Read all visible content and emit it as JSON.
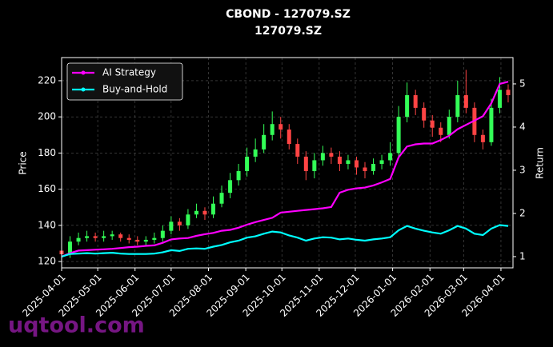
{
  "chart_data": {
    "type": "candlestick",
    "title": "CBOND - 127079.SZ",
    "subtitle": "127079.SZ",
    "ylabel": "Price",
    "y2label": "Return",
    "watermark": "uqtool.com",
    "x": [
      "2025-04-01",
      "2025-04-08",
      "2025-04-15",
      "2025-04-22",
      "2025-04-29",
      "2025-05-06",
      "2025-05-13",
      "2025-05-20",
      "2025-05-27",
      "2025-06-03",
      "2025-06-10",
      "2025-06-17",
      "2025-06-24",
      "2025-07-01",
      "2025-07-08",
      "2025-07-15",
      "2025-07-22",
      "2025-07-29",
      "2025-08-05",
      "2025-08-12",
      "2025-08-19",
      "2025-08-26",
      "2025-09-02",
      "2025-09-09",
      "2025-09-16",
      "2025-09-23",
      "2025-09-30",
      "2025-10-07",
      "2025-10-14",
      "2025-10-21",
      "2025-10-28",
      "2025-11-04",
      "2025-11-11",
      "2025-11-18",
      "2025-11-25",
      "2025-12-02",
      "2025-12-09",
      "2025-12-16",
      "2025-12-23",
      "2025-12-30",
      "2026-01-06",
      "2026-01-13",
      "2026-01-20",
      "2026-01-27",
      "2026-02-03",
      "2026-02-10",
      "2026-02-17",
      "2026-02-24",
      "2026-03-03",
      "2026-03-10",
      "2026-03-17",
      "2026-03-24",
      "2026-03-31",
      "2026-04-07"
    ],
    "open": [
      126,
      124,
      131,
      133,
      134,
      133,
      134,
      135,
      133,
      132,
      131,
      132,
      133,
      137,
      142,
      140,
      146,
      148,
      146,
      152,
      158,
      165,
      170,
      178,
      182,
      190,
      196,
      193,
      185,
      178,
      170,
      176,
      180,
      178,
      174,
      176,
      172,
      170,
      174,
      176,
      180,
      200,
      212,
      205,
      198,
      194,
      190,
      200,
      212,
      205,
      190,
      186,
      205,
      215
    ],
    "high": [
      128,
      134,
      136,
      137,
      136,
      137,
      137,
      136,
      135,
      134,
      134,
      136,
      140,
      145,
      144,
      149,
      152,
      150,
      156,
      162,
      169,
      174,
      183,
      188,
      196,
      203,
      200,
      196,
      188,
      181,
      180,
      184,
      183,
      181,
      179,
      178,
      175,
      177,
      179,
      186,
      206,
      219,
      215,
      208,
      201,
      197,
      204,
      220,
      226,
      208,
      193,
      210,
      222,
      218
    ],
    "low": [
      120,
      122,
      129,
      131,
      131,
      131,
      132,
      131,
      130,
      129,
      129,
      130,
      131,
      135,
      137,
      138,
      144,
      143,
      144,
      150,
      155,
      162,
      167,
      175,
      180,
      187,
      188,
      182,
      174,
      165,
      166,
      173,
      174,
      170,
      171,
      168,
      166,
      168,
      171,
      173,
      178,
      197,
      201,
      194,
      189,
      186,
      188,
      197,
      202,
      186,
      182,
      184,
      202,
      208
    ],
    "close": [
      124,
      131,
      133,
      134,
      133,
      134,
      135,
      133,
      132,
      131,
      132,
      133,
      137,
      142,
      140,
      146,
      148,
      146,
      152,
      158,
      165,
      170,
      178,
      182,
      190,
      196,
      193,
      185,
      178,
      170,
      176,
      180,
      178,
      174,
      176,
      172,
      170,
      174,
      176,
      180,
      200,
      212,
      205,
      198,
      194,
      190,
      200,
      212,
      205,
      190,
      186,
      205,
      215,
      212
    ],
    "up_color": "#33ff57",
    "down_color": "#ff4444",
    "series": [
      {
        "name": "AI Strategy",
        "color": "#ff00ff",
        "axis": "y2",
        "values": [
          1.0,
          1.08,
          1.14,
          1.15,
          1.16,
          1.17,
          1.18,
          1.2,
          1.22,
          1.23,
          1.25,
          1.26,
          1.32,
          1.4,
          1.42,
          1.43,
          1.48,
          1.52,
          1.55,
          1.6,
          1.62,
          1.67,
          1.74,
          1.8,
          1.85,
          1.9,
          2.02,
          2.04,
          2.06,
          2.08,
          2.1,
          2.12,
          2.15,
          2.48,
          2.55,
          2.58,
          2.6,
          2.65,
          2.72,
          2.8,
          3.3,
          3.55,
          3.6,
          3.62,
          3.62,
          3.7,
          3.8,
          3.95,
          4.05,
          4.15,
          4.25,
          4.55,
          5.0,
          5.05
        ]
      },
      {
        "name": "Buy-and-Hold",
        "color": "#00ffff",
        "axis": "y2",
        "values": [
          1.0,
          1.06,
          1.07,
          1.08,
          1.07,
          1.08,
          1.09,
          1.07,
          1.06,
          1.06,
          1.06,
          1.07,
          1.1,
          1.15,
          1.13,
          1.18,
          1.19,
          1.18,
          1.23,
          1.27,
          1.33,
          1.37,
          1.44,
          1.47,
          1.53,
          1.58,
          1.56,
          1.49,
          1.44,
          1.37,
          1.42,
          1.45,
          1.44,
          1.4,
          1.42,
          1.39,
          1.37,
          1.4,
          1.42,
          1.45,
          1.61,
          1.71,
          1.65,
          1.6,
          1.56,
          1.53,
          1.61,
          1.71,
          1.65,
          1.53,
          1.5,
          1.65,
          1.73,
          1.71
        ]
      }
    ],
    "xlim": [
      "2025-04-01",
      "2026-04-11"
    ],
    "xticks": [
      "2025-04-01",
      "2025-05-01",
      "2025-06-01",
      "2025-07-01",
      "2025-08-01",
      "2025-09-01",
      "2025-10-01",
      "2025-11-01",
      "2025-12-01",
      "2026-01-01",
      "2026-02-01",
      "2026-03-01",
      "2026-04-01"
    ],
    "ylim": [
      116.5,
      232.8
    ],
    "yticks": [
      120,
      140,
      160,
      180,
      200,
      220
    ],
    "y2lim": [
      0.74,
      5.61
    ],
    "y2ticks": [
      1,
      2,
      3,
      4,
      5
    ],
    "grid": true,
    "legend": "upper left"
  }
}
